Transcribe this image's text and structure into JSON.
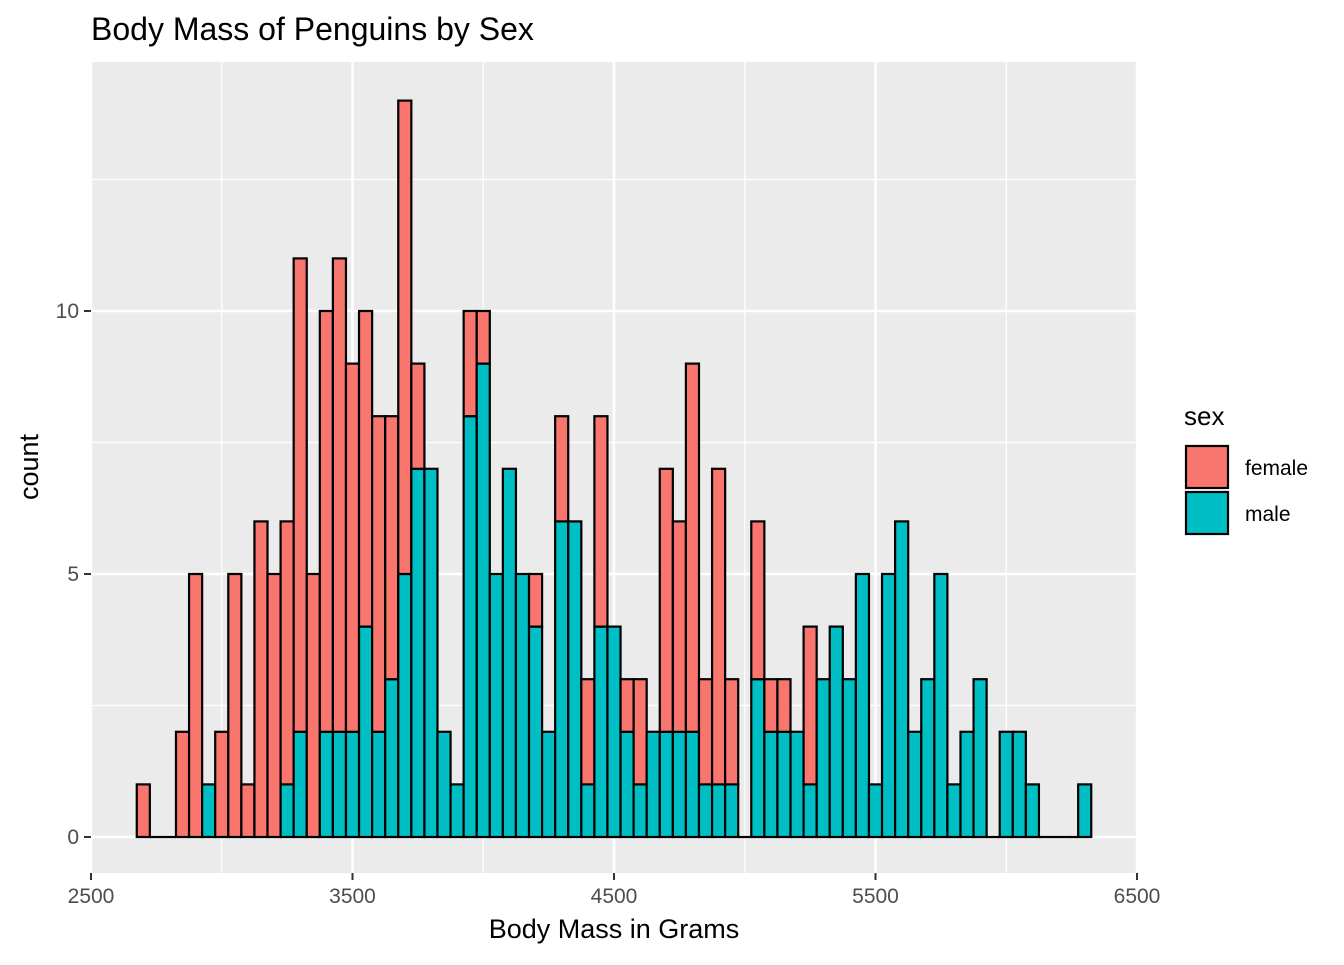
{
  "chart_data": {
    "type": "bar",
    "subtype": "stacked-histogram",
    "title": "Body Mass of Penguins by Sex",
    "xlabel": "Body Mass in Grams",
    "ylabel": "count",
    "xlim": [
      2500,
      6500
    ],
    "ylim": [
      0,
      14
    ],
    "x_ticks": [
      2500,
      3500,
      4500,
      5500,
      6500
    ],
    "x_tick_labels": [
      "2500",
      "3500",
      "4500",
      "5500",
      "6500"
    ],
    "y_ticks": [
      0,
      5,
      10
    ],
    "y_tick_labels": [
      "0",
      "5",
      "10"
    ],
    "bin_width": 50,
    "bin_starts": [
      2675,
      2725,
      2775,
      2825,
      2875,
      2925,
      2975,
      3025,
      3075,
      3125,
      3175,
      3225,
      3275,
      3325,
      3375,
      3425,
      3475,
      3525,
      3575,
      3625,
      3675,
      3725,
      3775,
      3825,
      3875,
      3925,
      3975,
      4025,
      4075,
      4125,
      4175,
      4225,
      4275,
      4325,
      4375,
      4425,
      4475,
      4525,
      4575,
      4625,
      4675,
      4725,
      4775,
      4825,
      4875,
      4925,
      4975,
      5025,
      5075,
      5125,
      5175,
      5225,
      5275,
      5325,
      5375,
      5425,
      5475,
      5525,
      5575,
      5625,
      5675,
      5725,
      5775,
      5825,
      5875,
      5925,
      5975,
      6025,
      6075,
      6125,
      6175,
      6225,
      6275
    ],
    "series": [
      {
        "name": "male",
        "color": "#00BFC4",
        "values": [
          0,
          0,
          0,
          0,
          0,
          1,
          0,
          0,
          0,
          0,
          0,
          1,
          2,
          0,
          2,
          2,
          2,
          4,
          2,
          3,
          5,
          7,
          7,
          2,
          1,
          8,
          9,
          5,
          7,
          5,
          4,
          2,
          6,
          6,
          1,
          4,
          4,
          2,
          1,
          2,
          2,
          2,
          2,
          1,
          1,
          1,
          0,
          3,
          2,
          2,
          2,
          1,
          3,
          4,
          3,
          5,
          1,
          5,
          6,
          2,
          3,
          5,
          1,
          2,
          3,
          0,
          2,
          2,
          1,
          0,
          0,
          0,
          1
        ]
      },
      {
        "name": "female",
        "color": "#F8766D",
        "values": [
          1,
          0,
          0,
          2,
          5,
          0,
          2,
          5,
          1,
          6,
          5,
          5,
          9,
          5,
          8,
          9,
          7,
          6,
          6,
          5,
          9,
          2,
          0,
          0,
          0,
          2,
          1,
          0,
          0,
          0,
          1,
          0,
          2,
          0,
          2,
          4,
          0,
          1,
          2,
          0,
          5,
          4,
          7,
          2,
          6,
          2,
          0,
          3,
          1,
          1,
          0,
          3,
          0,
          0,
          0,
          0,
          0,
          0,
          0,
          0,
          0,
          0,
          0,
          0,
          0,
          0,
          0,
          0,
          0,
          0,
          0,
          0,
          0
        ]
      }
    ],
    "legend": {
      "title": "sex",
      "position": "right",
      "entries": [
        {
          "label": "female",
          "color": "#F8766D"
        },
        {
          "label": "male",
          "color": "#00BFC4"
        }
      ]
    },
    "grid": true,
    "panel_background": "#EBEBEB",
    "bar_outline": "#000000"
  }
}
